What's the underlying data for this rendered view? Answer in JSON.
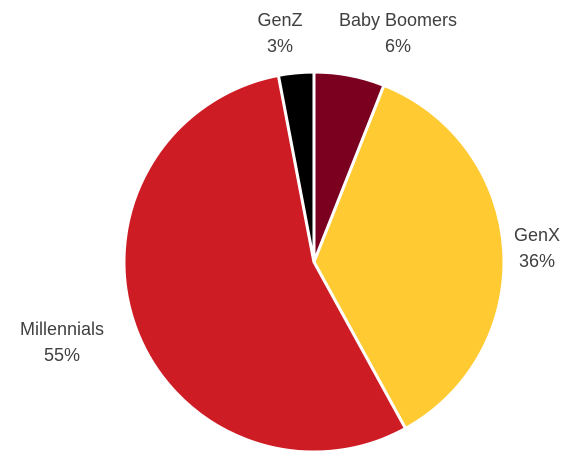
{
  "chart_data": {
    "type": "pie",
    "title": "",
    "categories": [
      "Baby Boomers",
      "GenX",
      "Millennials",
      "GenZ"
    ],
    "values": [
      6,
      36,
      55,
      3
    ],
    "value_labels": [
      "6%",
      "36%",
      "55%",
      "3%"
    ],
    "colors": [
      "#7B0020",
      "#FFCA32",
      "#CE1C24",
      "#000000"
    ],
    "start_angle_deg": 0,
    "direction": "clockwise",
    "slice_border_color": "#ffffff",
    "legend": "none",
    "data_labels": "outside"
  }
}
